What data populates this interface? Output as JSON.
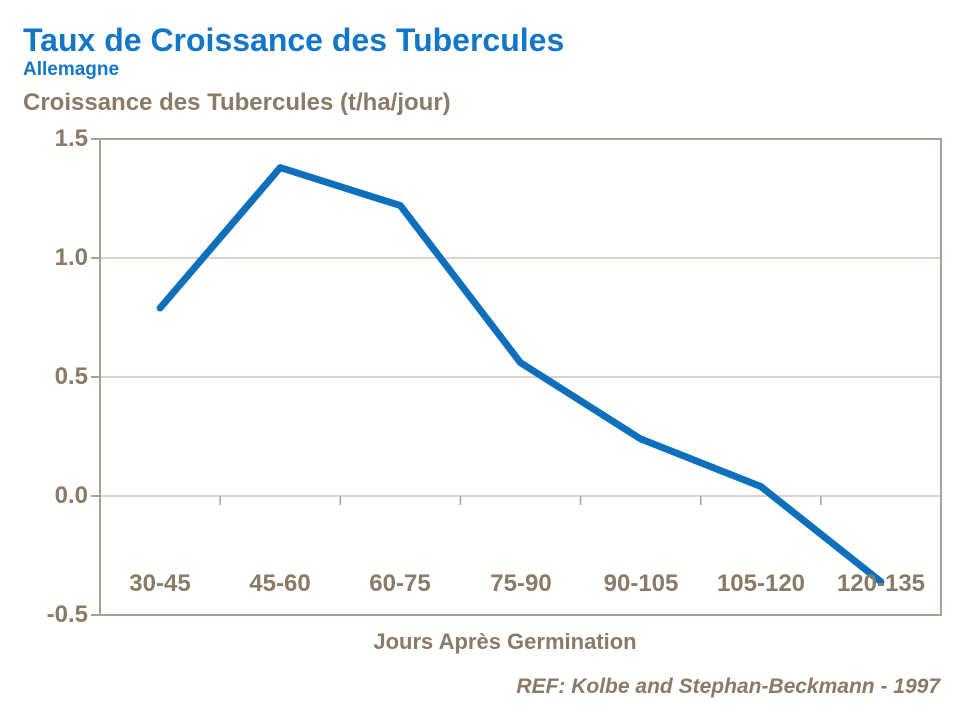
{
  "header": {
    "title": "Taux de Croissance des Tubercules",
    "subtitle": "Allemagne"
  },
  "chart_data": {
    "type": "line",
    "title": "Taux de Croissance des Tubercules",
    "subtitle": "Allemagne",
    "ylabel": "Croissance des Tubercules (t/ha/jour)",
    "xlabel": "Jours Après Germination",
    "categories": [
      "30-45",
      "45-60",
      "60-75",
      "75-90",
      "90-105",
      "105-120",
      "120-135"
    ],
    "values": [
      0.79,
      1.38,
      1.22,
      0.56,
      0.24,
      0.04,
      -0.36
    ],
    "yticks": [
      1.5,
      1.0,
      0.5,
      0.0,
      -0.5
    ],
    "ytick_labels": [
      "1.5",
      "1.0",
      "0.5",
      "0.0",
      "-0.5"
    ],
    "ylim": [
      -0.5,
      1.5
    ],
    "grid": true,
    "legend": "none",
    "line_color": "#0e70bc",
    "accent_blue": "#1377c9",
    "label_color": "#8a7a66",
    "gridline_color": "#c3bbad",
    "frame_color": "#aaa091"
  },
  "footer": {
    "reference": "REF: Kolbe and Stephan-Beckmann - 1997"
  }
}
